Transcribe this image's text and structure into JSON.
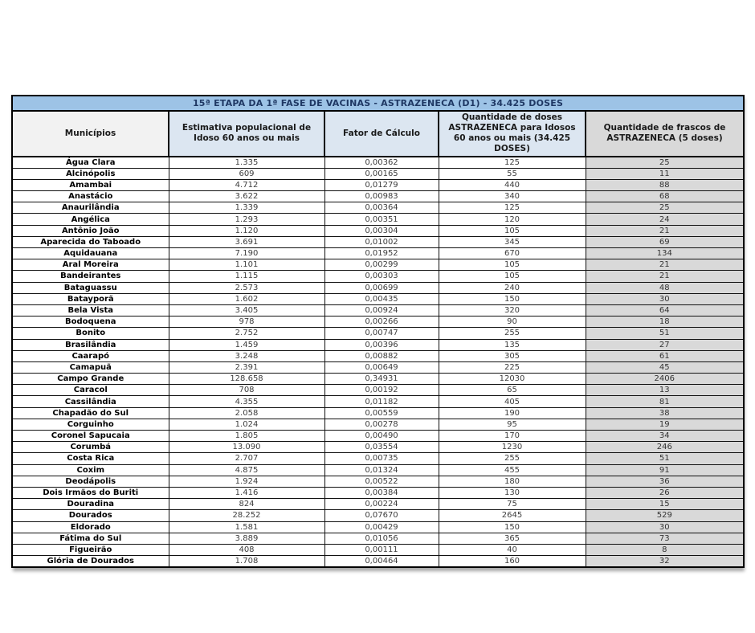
{
  "page": {
    "background": "#ffffff"
  },
  "table": {
    "title": "15ª ETAPA DA 1ª FASE DE VACINAS - ASTRAZENECA (D1) - 34.425 DOSES",
    "headers": [
      "Municípios",
      "Estimativa populacional de Idoso 60 anos ou mais",
      "Fator de Cálculo",
      "Quantidade de doses ASTRAZENECA para Idosos 60 anos ou mais (34.425 DOSES)",
      "Quantidade de frascos de ASTRAZENECA (5 doses)"
    ],
    "col_keys": [
      "municipio-cell",
      "estimativa-populacional-cell",
      "fator-calculo-cell",
      "doses-cell",
      "frascos-cell"
    ],
    "colors": {
      "title_bar_bg": "#9DC3E6",
      "title_text": "#1F3864",
      "header_blue_bg": "#DCE6F1",
      "header_gray_light_bg": "#F2F2F2",
      "frascos_column_bg": "#D9D9D9",
      "border": "#000000",
      "municipality_text": "#000000",
      "value_text": "#3d3d3d"
    },
    "rows": [
      [
        "Água Clara",
        "1.335",
        "0,00362",
        "125",
        "25"
      ],
      [
        "Alcinópolis",
        "609",
        "0,00165",
        "55",
        "11"
      ],
      [
        "Amambai",
        "4.712",
        "0,01279",
        "440",
        "88"
      ],
      [
        "Anastácio",
        "3.622",
        "0,00983",
        "340",
        "68"
      ],
      [
        "Anaurilândia",
        "1.339",
        "0,00364",
        "125",
        "25"
      ],
      [
        "Angélica",
        "1.293",
        "0,00351",
        "120",
        "24"
      ],
      [
        "Antônio João",
        "1.120",
        "0,00304",
        "105",
        "21"
      ],
      [
        "Aparecida do Taboado",
        "3.691",
        "0,01002",
        "345",
        "69"
      ],
      [
        "Aquidauana",
        "7.190",
        "0,01952",
        "670",
        "134"
      ],
      [
        "Aral Moreira",
        "1.101",
        "0,00299",
        "105",
        "21"
      ],
      [
        "Bandeirantes",
        "1.115",
        "0,00303",
        "105",
        "21"
      ],
      [
        "Bataguassu",
        "2.573",
        "0,00699",
        "240",
        "48"
      ],
      [
        "Batayporã",
        "1.602",
        "0,00435",
        "150",
        "30"
      ],
      [
        "Bela Vista",
        "3.405",
        "0,00924",
        "320",
        "64"
      ],
      [
        "Bodoquena",
        "978",
        "0,00266",
        "90",
        "18"
      ],
      [
        "Bonito",
        "2.752",
        "0,00747",
        "255",
        "51"
      ],
      [
        "Brasilândia",
        "1.459",
        "0,00396",
        "135",
        "27"
      ],
      [
        "Caarapó",
        "3.248",
        "0,00882",
        "305",
        "61"
      ],
      [
        "Camapuã",
        "2.391",
        "0,00649",
        "225",
        "45"
      ],
      [
        "Campo Grande",
        "128.658",
        "0,34931",
        "12030",
        "2406"
      ],
      [
        "Caracol",
        "708",
        "0,00192",
        "65",
        "13"
      ],
      [
        "Cassilândia",
        "4.355",
        "0,01182",
        "405",
        "81"
      ],
      [
        "Chapadão do Sul",
        "2.058",
        "0,00559",
        "190",
        "38"
      ],
      [
        "Corguinho",
        "1.024",
        "0,00278",
        "95",
        "19"
      ],
      [
        "Coronel Sapucaia",
        "1.805",
        "0,00490",
        "170",
        "34"
      ],
      [
        "Corumbá",
        "13.090",
        "0,03554",
        "1230",
        "246"
      ],
      [
        "Costa Rica",
        "2.707",
        "0,00735",
        "255",
        "51"
      ],
      [
        "Coxim",
        "4.875",
        "0,01324",
        "455",
        "91"
      ],
      [
        "Deodápolis",
        "1.924",
        "0,00522",
        "180",
        "36"
      ],
      [
        "Dois Irmãos do Buriti",
        "1.416",
        "0,00384",
        "130",
        "26"
      ],
      [
        "Douradina",
        "824",
        "0,00224",
        "75",
        "15"
      ],
      [
        "Dourados",
        "28.252",
        "0,07670",
        "2645",
        "529"
      ],
      [
        "Eldorado",
        "1.581",
        "0,00429",
        "150",
        "30"
      ],
      [
        "Fátima do Sul",
        "3.889",
        "0,01056",
        "365",
        "73"
      ],
      [
        "Figueirão",
        "408",
        "0,00111",
        "40",
        "8"
      ],
      [
        "Glória de Dourados",
        "1.708",
        "0,00464",
        "160",
        "32"
      ]
    ]
  }
}
